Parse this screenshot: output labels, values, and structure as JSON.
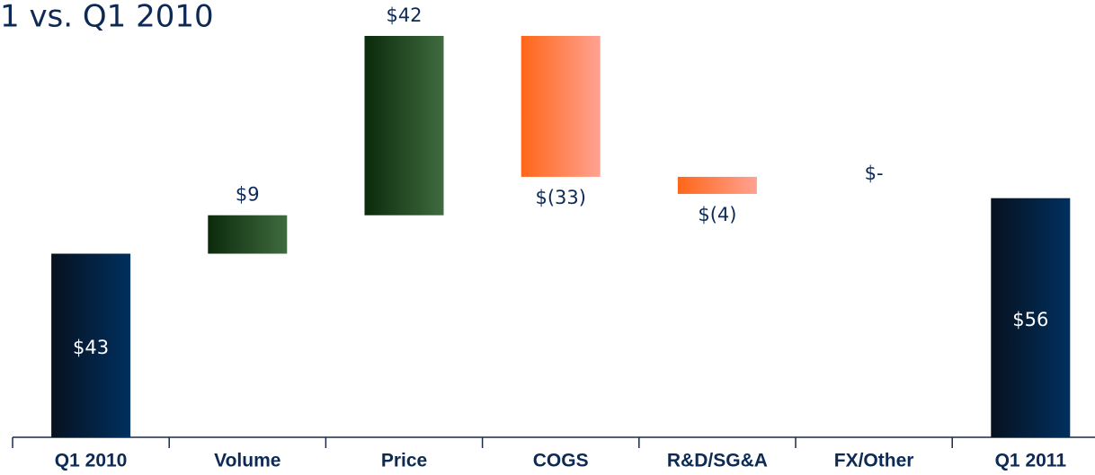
{
  "chart_data": {
    "type": "waterfall",
    "title": "1 vs. Q1 2010",
    "categories": [
      "Q1 2010",
      "Volume",
      "Price",
      "COGS",
      "R&D/SG&A",
      "FX/Other",
      "Q1 2011"
    ],
    "values": [
      43,
      9,
      42,
      -33,
      -4,
      0,
      56
    ],
    "value_labels": [
      "$43",
      "$9",
      "$42",
      "$(33)",
      "$(4)",
      "$-",
      "$56"
    ],
    "colors": {
      "total": [
        "#07111f",
        "#00305f"
      ],
      "increase": [
        "#0b2a0b",
        "#3f6b3f"
      ],
      "decrease": [
        "#ff6618",
        "#ffa292"
      ]
    }
  }
}
